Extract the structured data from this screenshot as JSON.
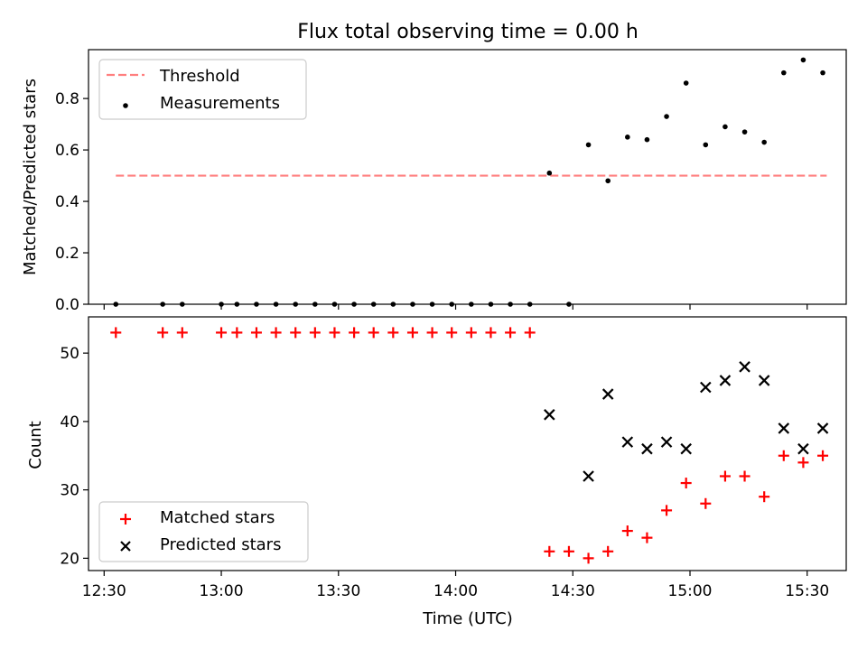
{
  "title": "Flux total observing time = 0.00 h",
  "colors": {
    "threshold": "#ff7f7f",
    "measurements": "#000000",
    "matched": "#ff0000",
    "predicted": "#000000"
  },
  "chart_data": [
    {
      "type": "scatter",
      "ylabel": "Matched/Predicted stars",
      "xlim": [
        "12:26",
        "15:40"
      ],
      "ylim": [
        0,
        0.99
      ],
      "yticks": [
        "0.0",
        "0.2",
        "0.4",
        "0.6",
        "0.8"
      ],
      "legend": [
        "Threshold",
        "Measurements"
      ],
      "legend_position": "top-left",
      "threshold": {
        "name": "Threshold",
        "y": 0.5,
        "x_start": "12:33",
        "x_end": "15:35"
      },
      "series": [
        {
          "name": "Measurements",
          "points": [
            [
              "12:33",
              0
            ],
            [
              "12:45",
              0
            ],
            [
              "12:50",
              0
            ],
            [
              "13:00",
              0
            ],
            [
              "13:04",
              0
            ],
            [
              "13:09",
              0
            ],
            [
              "13:14",
              0
            ],
            [
              "13:19",
              0
            ],
            [
              "13:24",
              0
            ],
            [
              "13:29",
              0
            ],
            [
              "13:34",
              0
            ],
            [
              "13:39",
              0
            ],
            [
              "13:44",
              0
            ],
            [
              "13:49",
              0
            ],
            [
              "13:54",
              0
            ],
            [
              "13:59",
              0
            ],
            [
              "14:04",
              0
            ],
            [
              "14:09",
              0
            ],
            [
              "14:14",
              0
            ],
            [
              "14:19",
              0
            ],
            [
              "14:24",
              0.51
            ],
            [
              "14:29",
              0
            ],
            [
              "14:34",
              0.62
            ],
            [
              "14:39",
              0.48
            ],
            [
              "14:44",
              0.65
            ],
            [
              "14:49",
              0.64
            ],
            [
              "14:54",
              0.73
            ],
            [
              "14:59",
              0.86
            ],
            [
              "15:04",
              0.62
            ],
            [
              "15:09",
              0.69
            ],
            [
              "15:14",
              0.67
            ],
            [
              "15:19",
              0.63
            ],
            [
              "15:24",
              0.9
            ],
            [
              "15:29",
              0.95
            ],
            [
              "15:34",
              0.9
            ]
          ]
        }
      ]
    },
    {
      "type": "scatter",
      "xlabel": "Time (UTC)",
      "ylabel": "Count",
      "xticks": [
        "12:30",
        "13:00",
        "13:30",
        "14:00",
        "14:30",
        "15:00",
        "15:30"
      ],
      "xlim": [
        "12:26",
        "15:40"
      ],
      "ylim": [
        18.2,
        55.3
      ],
      "yticks": [
        "20",
        "30",
        "40",
        "50"
      ],
      "legend": [
        "Matched stars",
        "Predicted stars"
      ],
      "legend_position": "bottom-left",
      "series": [
        {
          "name": "Matched stars",
          "points": [
            [
              "12:33",
              53
            ],
            [
              "12:45",
              53
            ],
            [
              "12:50",
              53
            ],
            [
              "13:00",
              53
            ],
            [
              "13:04",
              53
            ],
            [
              "13:09",
              53
            ],
            [
              "13:14",
              53
            ],
            [
              "13:19",
              53
            ],
            [
              "13:24",
              53
            ],
            [
              "13:29",
              53
            ],
            [
              "13:34",
              53
            ],
            [
              "13:39",
              53
            ],
            [
              "13:44",
              53
            ],
            [
              "13:49",
              53
            ],
            [
              "13:54",
              53
            ],
            [
              "13:59",
              53
            ],
            [
              "14:04",
              53
            ],
            [
              "14:09",
              53
            ],
            [
              "14:14",
              53
            ],
            [
              "14:19",
              53
            ],
            [
              "14:24",
              21
            ],
            [
              "14:29",
              21
            ],
            [
              "14:34",
              20
            ],
            [
              "14:39",
              21
            ],
            [
              "14:44",
              24
            ],
            [
              "14:49",
              23
            ],
            [
              "14:54",
              27
            ],
            [
              "14:59",
              31
            ],
            [
              "15:04",
              28
            ],
            [
              "15:09",
              32
            ],
            [
              "15:14",
              32
            ],
            [
              "15:19",
              29
            ],
            [
              "15:24",
              35
            ],
            [
              "15:29",
              34
            ],
            [
              "15:34",
              35
            ]
          ]
        },
        {
          "name": "Predicted stars",
          "points": [
            [
              "14:24",
              41
            ],
            [
              "14:34",
              32
            ],
            [
              "14:39",
              44
            ],
            [
              "14:44",
              37
            ],
            [
              "14:49",
              36
            ],
            [
              "14:54",
              37
            ],
            [
              "14:59",
              36
            ],
            [
              "15:04",
              45
            ],
            [
              "15:09",
              46
            ],
            [
              "15:14",
              48
            ],
            [
              "15:19",
              46
            ],
            [
              "15:24",
              39
            ],
            [
              "15:29",
              36
            ],
            [
              "15:34",
              39
            ]
          ]
        }
      ]
    }
  ]
}
